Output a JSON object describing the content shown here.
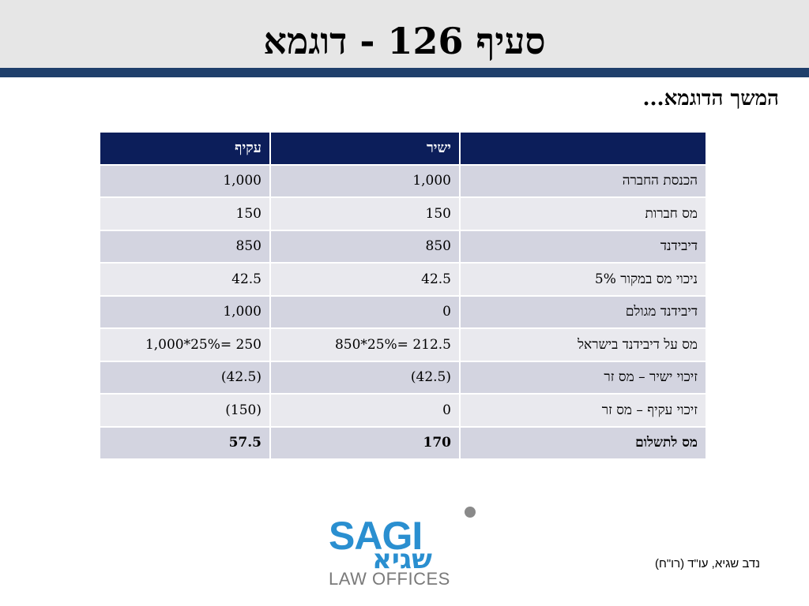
{
  "title": "סעיף 126 - דוגמא",
  "subtitle": "המשך הדוגמא...",
  "table": {
    "headers": [
      "",
      "ישיר",
      "עקיף"
    ],
    "rows": [
      {
        "label": "הכנסת החברה",
        "direct": "1,000",
        "indirect": "1,000"
      },
      {
        "label": "מס חברות",
        "direct": "150",
        "indirect": "150"
      },
      {
        "label": "דיבידנד",
        "direct": "850",
        "indirect": "850"
      },
      {
        "label": "ניכוי מס במקור 5%",
        "direct": "42.5",
        "indirect": "42.5"
      },
      {
        "label": "דיבידנד מגולם",
        "direct": "0",
        "indirect": "1,000"
      },
      {
        "label": "מס על דיבידנד בישראל",
        "direct": "850*25%= 212.5",
        "indirect": "1,000*25%= 250"
      },
      {
        "label": "זיכוי ישיר – מס זר",
        "direct": "(42.5)",
        "indirect": "(42.5)"
      },
      {
        "label": "זיכוי עקיף – מס זר",
        "direct": "0",
        "indirect": "(150)"
      },
      {
        "label": "מס לתשלום",
        "direct": "170",
        "indirect": "57.5"
      }
    ]
  },
  "logo": {
    "brand": "SAGI",
    "hebrew": "שגיא",
    "tagline": "LAW OFFICES"
  },
  "author": "נדב שגיא, עו\"ד (רו\"ח)",
  "colors": {
    "header_band": "#e6e6e6",
    "header_rule": "#1f3f6b",
    "table_header": "#0c1e5a",
    "row_dark": "#d3d4e0",
    "row_light": "#e9e9ee",
    "logo_blue": "#2a8fd0"
  }
}
